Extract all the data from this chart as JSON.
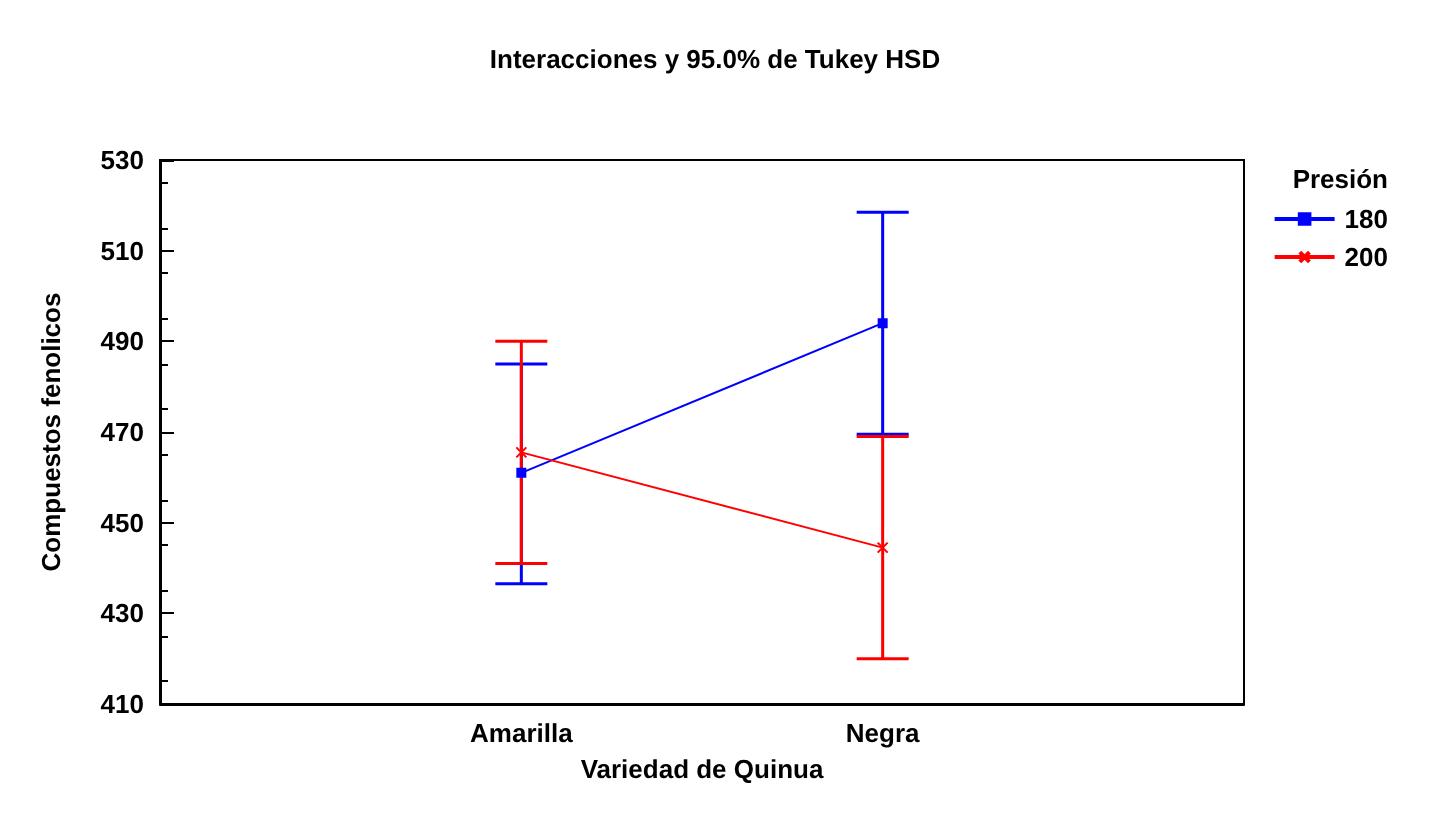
{
  "chart_data": {
    "type": "line",
    "title": "Interacciones y 95.0% de Tukey HSD",
    "xlabel": "Variedad de Quinua",
    "ylabel": "Compuestos fenolicos",
    "legend_title": "Presión",
    "categories": [
      "Amarilla",
      "Negra"
    ],
    "series": [
      {
        "name": "180",
        "color": "#0000ff",
        "marker": "square",
        "values": [
          461,
          494
        ],
        "errors": [
          [
            436.5,
            485
          ],
          [
            469.5,
            518.5
          ]
        ]
      },
      {
        "name": "200",
        "color": "#ff0000",
        "marker": "cross",
        "values": [
          465.5,
          444.5
        ],
        "errors": [
          [
            441,
            490
          ],
          [
            420,
            469
          ]
        ]
      }
    ],
    "ylim": [
      410,
      530
    ],
    "yticks": [
      410,
      430,
      450,
      470,
      490,
      510,
      530
    ],
    "grid": false,
    "legend": "top right"
  }
}
